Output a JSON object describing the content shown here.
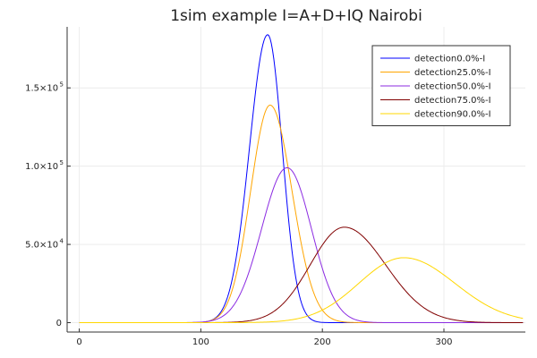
{
  "chart_data": {
    "type": "line",
    "title": "1sim example I=A+D+IQ Nairobi",
    "xlabel": "",
    "ylabel": "",
    "xlim": [
      -10,
      367
    ],
    "ylim": [
      -6000,
      189000
    ],
    "grid": true,
    "legend_position": "top-right",
    "x_ticks": [
      {
        "value": 0,
        "label": "0"
      },
      {
        "value": 100,
        "label": "100"
      },
      {
        "value": 200,
        "label": "200"
      },
      {
        "value": 300,
        "label": "300"
      }
    ],
    "y_ticks": [
      {
        "value": 0,
        "mant": "0",
        "exp": ""
      },
      {
        "value": 50000,
        "mant": "5.0×10",
        "exp": "4"
      },
      {
        "value": 100000,
        "mant": "1.0×10",
        "exp": "5"
      },
      {
        "value": 150000,
        "mant": "1.5×10",
        "exp": "5"
      }
    ],
    "series": [
      {
        "name": "detection0.0%-I",
        "color": "#0000ff",
        "peak_x": 155,
        "peak_y": 184000,
        "left_width": 15,
        "right_width": 12
      },
      {
        "name": "detection25.0%-I",
        "color": "#ffa500",
        "peak_x": 157,
        "peak_y": 139000,
        "left_width": 16,
        "right_width": 18
      },
      {
        "name": "detection50.0%-I",
        "color": "#8b2be2",
        "peak_x": 171,
        "peak_y": 99000,
        "left_width": 21,
        "right_width": 20
      },
      {
        "name": "detection75.0%-I",
        "color": "#800000",
        "peak_x": 218,
        "peak_y": 61000,
        "left_width": 28,
        "right_width": 34
      },
      {
        "name": "detection90.0%-I",
        "color": "#ffd700",
        "peak_x": 267,
        "peak_y": 41500,
        "left_width": 37,
        "right_width": 42
      }
    ]
  }
}
